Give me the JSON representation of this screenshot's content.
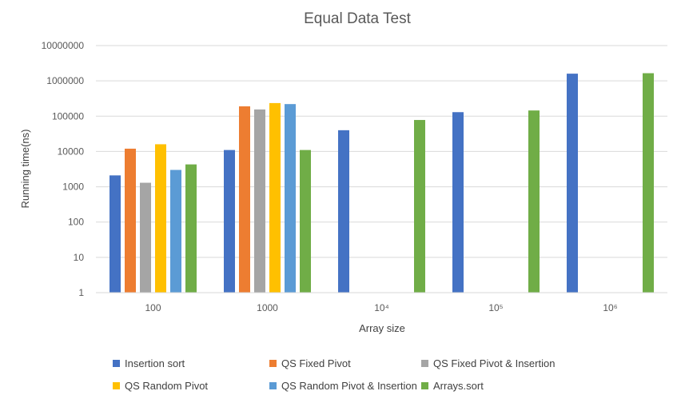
{
  "chart_data": {
    "type": "bar",
    "title": "Equal Data Test",
    "xlabel": "Array size",
    "ylabel": "Running time(ns)",
    "yscale": "log",
    "ylim": [
      1,
      10000000
    ],
    "yticks": [
      "1",
      "10",
      "100",
      "1000",
      "10000",
      "100000",
      "1000000",
      "10000000"
    ],
    "categories": [
      "100",
      "1000",
      "10⁴",
      "10⁵",
      "10⁶"
    ],
    "grid": true,
    "legend_position": "bottom",
    "series": [
      {
        "name": "Insertion sort",
        "color": "#4472C4",
        "values": [
          2100,
          11000,
          40000,
          130000,
          1600000
        ]
      },
      {
        "name": "QS Fixed Pivot",
        "color": "#ED7D31",
        "values": [
          12000,
          190000,
          null,
          null,
          null
        ]
      },
      {
        "name": "QS Fixed Pivot & Insertion",
        "color": "#A5A5A5",
        "values": [
          1300,
          155000,
          null,
          null,
          null
        ]
      },
      {
        "name": "QS Random Pivot",
        "color": "#FFC000",
        "values": [
          16000,
          235000,
          null,
          null,
          null
        ]
      },
      {
        "name": "QS Random Pivot & Insertion",
        "color": "#5B9BD5",
        "values": [
          3000,
          220000,
          null,
          null,
          null
        ]
      },
      {
        "name": "Arrays.sort",
        "color": "#70AD47",
        "values": [
          4300,
          11000,
          78000,
          145000,
          1650000
        ]
      }
    ]
  }
}
